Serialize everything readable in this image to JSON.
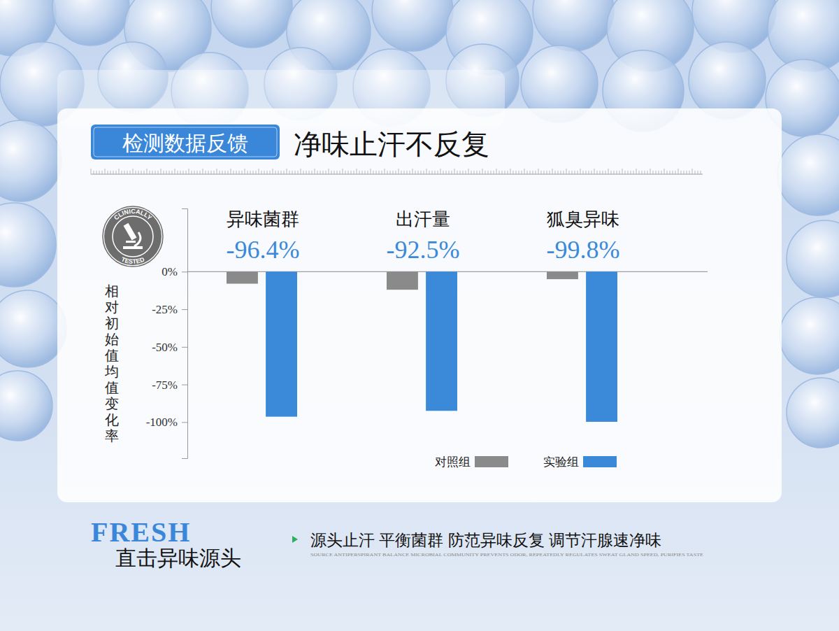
{
  "chart_data": {
    "type": "bar",
    "subtitle": "检测数据反馈",
    "title": "净味止汗不反复",
    "y_label": "相对初始值均值变化率",
    "categories": [
      "异味菌群",
      "出汗量",
      "狐臭异味"
    ],
    "series": [
      {
        "name": "对照组",
        "color": "#8a8a8a",
        "values": [
          -8,
          -12,
          -5
        ]
      },
      {
        "name": "实验组",
        "color": "#3a8ad9",
        "values": [
          -96.4,
          -92.5,
          -99.8
        ],
        "value_labels": [
          "-96.4%",
          "-92.5%",
          "-99.8%"
        ],
        "data_labels": true
      }
    ],
    "ylim": [
      -124,
      42
    ],
    "yticks": [
      {
        "value": 0,
        "label": "0%"
      },
      {
        "value": -25,
        "label": "-25%"
      },
      {
        "value": -50,
        "label": "-50%"
      },
      {
        "value": -75,
        "label": "-75%"
      },
      {
        "value": -100,
        "label": "-100%"
      }
    ],
    "legend": "lower right"
  },
  "page": {
    "badge": {
      "top": "CLINICALLY",
      "bottom": "TESTED"
    },
    "footer": {
      "watermark": "FRESH",
      "heading": "直击异味源头",
      "tagline": "源头止汗 平衡菌群 防范异味反复 调节汗腺速净味",
      "tagline_en": "SOURCE ANTIPERSPIRANT BALANCE MICROBIAL COMMUNITY PREVENTS ODOR, REPEATEDLY REGULATES SWEAT GLAND SPEED, PURIFIES TASTE"
    }
  }
}
